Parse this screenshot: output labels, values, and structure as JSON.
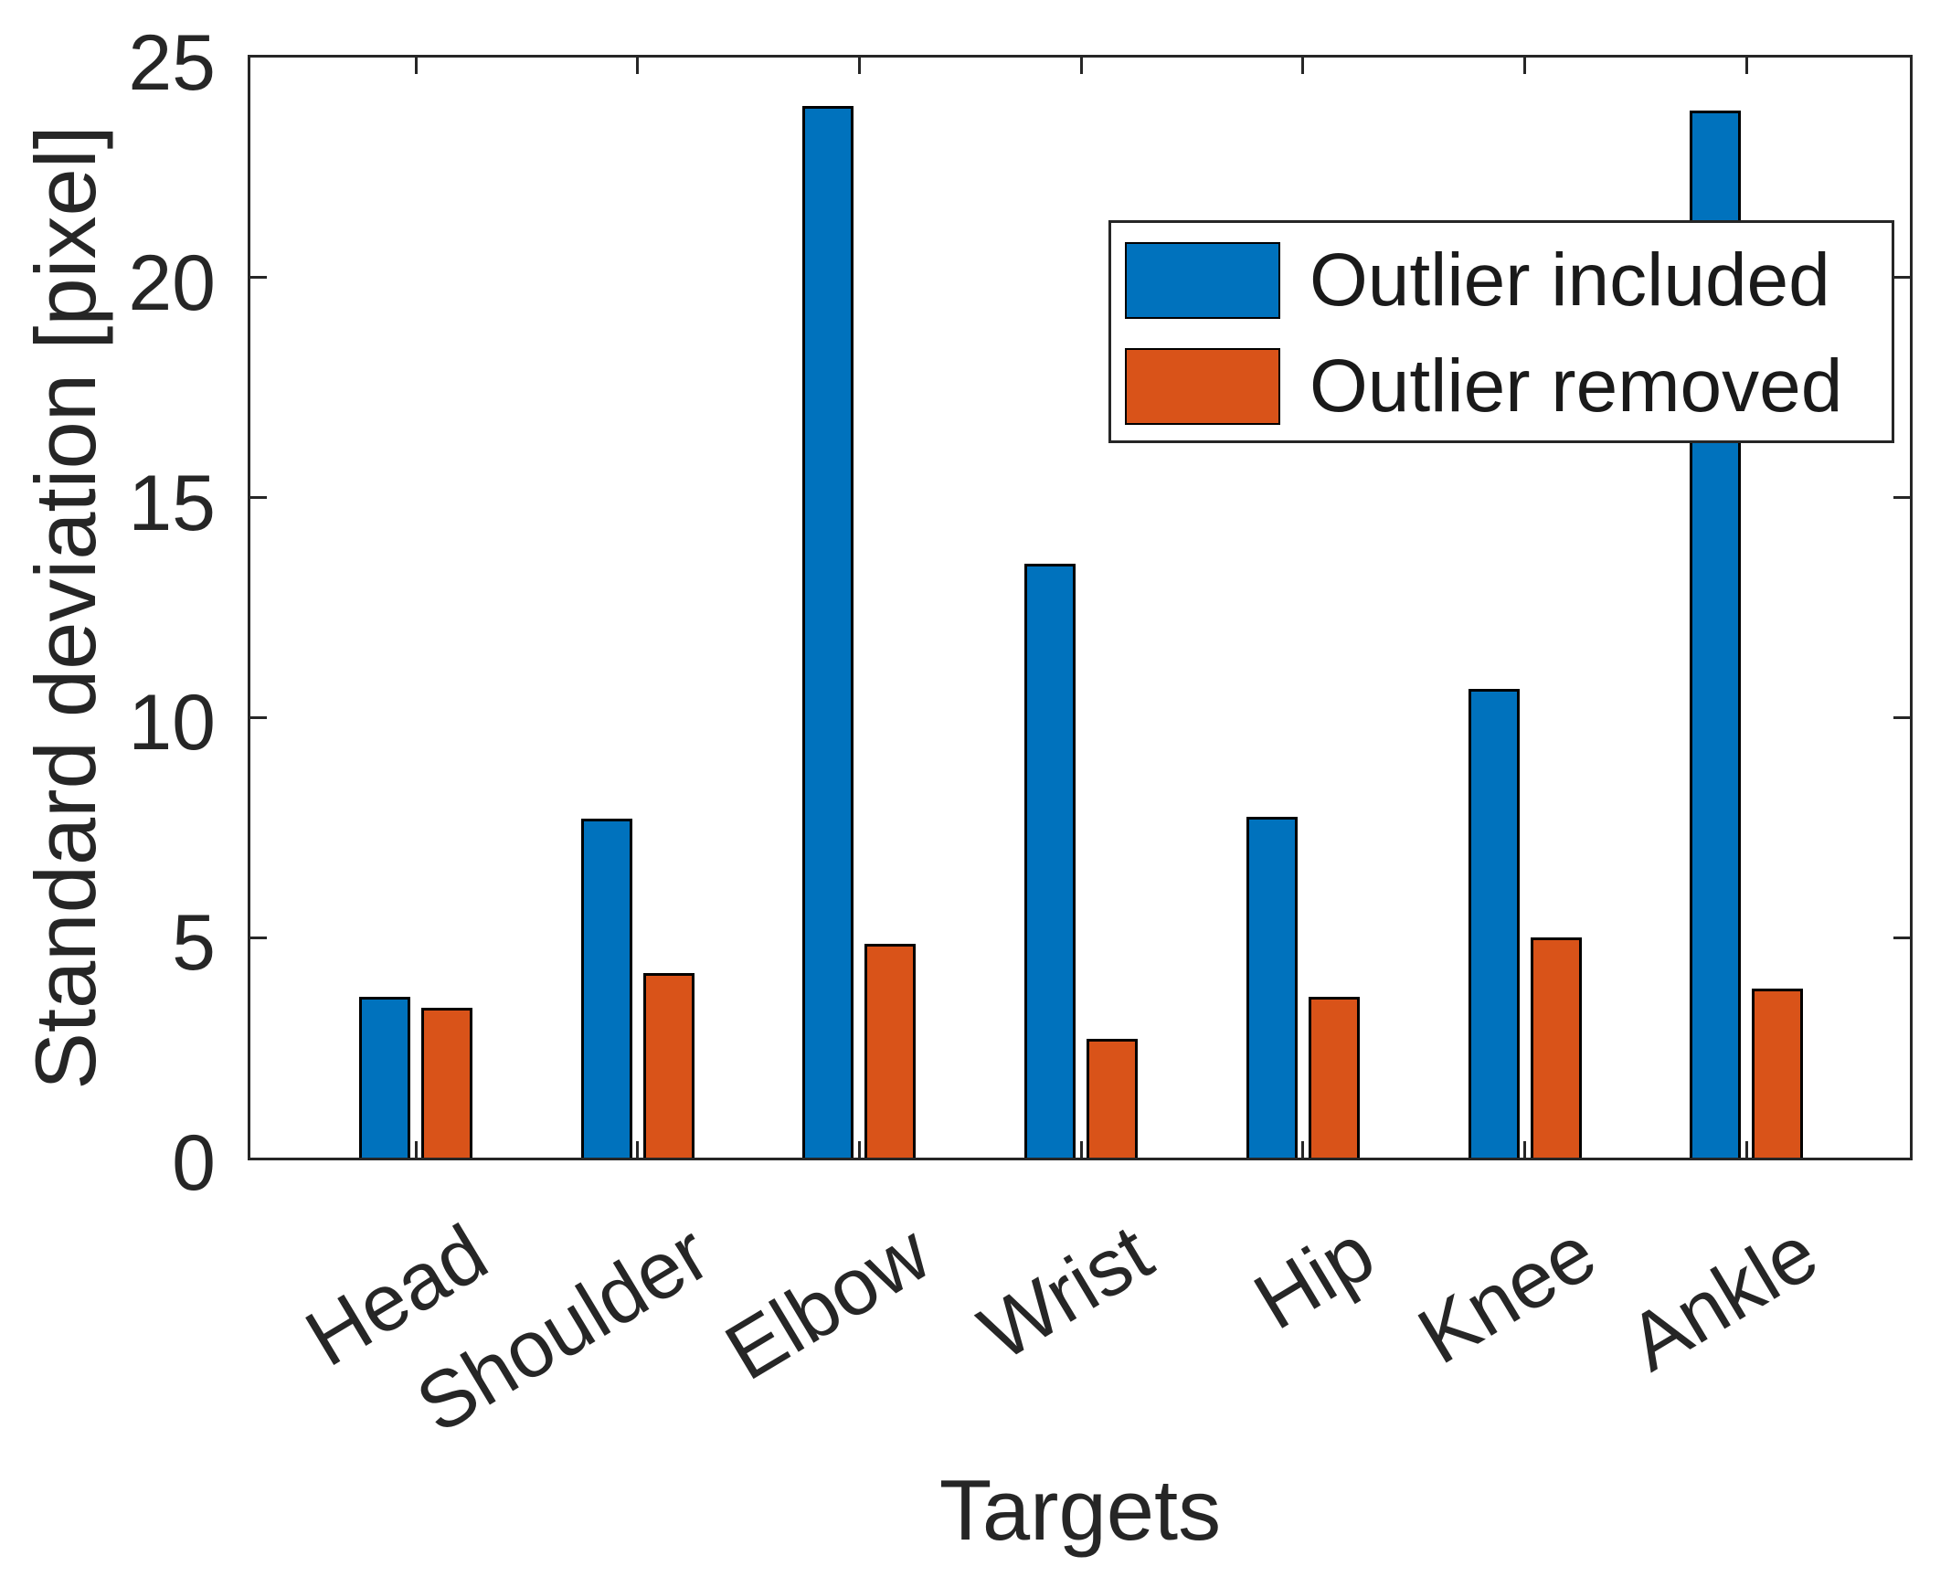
{
  "figure": {
    "background": "#ffffff",
    "axis_color": "#262626",
    "bar_edge_color": "#000000"
  },
  "chart_data": {
    "type": "bar",
    "title": "",
    "xlabel": "Targets",
    "ylabel": "Standard deviation [pixel]",
    "categories": [
      "Head",
      "Shoulder",
      "Elbow",
      "Wrist",
      "Hip",
      "Knee",
      "Ankle"
    ],
    "series": [
      {
        "name": "Outlier included",
        "color": "#0072BD",
        "values": [
          3.65,
          7.7,
          23.9,
          13.5,
          7.75,
          10.65,
          23.8
        ]
      },
      {
        "name": "Outlier removed",
        "color": "#D95319",
        "values": [
          3.4,
          4.2,
          4.85,
          2.7,
          3.65,
          5.0,
          3.85
        ]
      }
    ],
    "ylim": [
      0,
      25
    ],
    "yticks": [
      0,
      5,
      10,
      15,
      20,
      25
    ],
    "grid": false,
    "legend_position": "upper-right-inside",
    "legend_entries": [
      "Outlier included",
      "Outlier removed"
    ]
  }
}
